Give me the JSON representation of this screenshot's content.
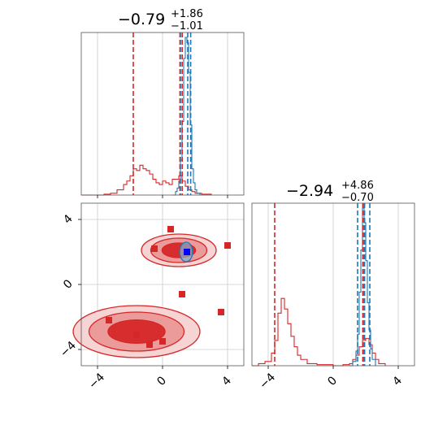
{
  "chart_data": {
    "type": "corner",
    "axis_ticks": [
      -4,
      0,
      4
    ],
    "axis_range": [
      -5,
      5
    ],
    "params": [
      {
        "title_value": "−0.79",
        "title_plus": "+1.86",
        "title_minus": "−1.01"
      },
      {
        "title_value": "−2.94",
        "title_plus": "+4.86",
        "title_minus": "−0.70"
      }
    ],
    "hist_x": {
      "red_quantiles": [
        -1.8,
        1.07,
        1.21
      ],
      "blue_quantiles": [
        1.1,
        1.55,
        1.73
      ],
      "red_hist": [
        [
          -5,
          0
        ],
        [
          -4,
          0
        ],
        [
          -3.6,
          0.005
        ],
        [
          -3.2,
          0.01
        ],
        [
          -2.8,
          0.03
        ],
        [
          -2.4,
          0.06
        ],
        [
          -2.2,
          0.08
        ],
        [
          -2.0,
          0.11
        ],
        [
          -1.8,
          0.15
        ],
        [
          -1.6,
          0.14
        ],
        [
          -1.4,
          0.17
        ],
        [
          -1.2,
          0.15
        ],
        [
          -1.0,
          0.14
        ],
        [
          -0.8,
          0.12
        ],
        [
          -0.6,
          0.09
        ],
        [
          -0.4,
          0.07
        ],
        [
          -0.2,
          0.06
        ],
        [
          0.0,
          0.08
        ],
        [
          0.2,
          0.07
        ],
        [
          0.4,
          0.06
        ],
        [
          0.6,
          0.09
        ],
        [
          0.8,
          0.09
        ],
        [
          1.0,
          0.11
        ],
        [
          1.2,
          0.08
        ],
        [
          1.4,
          0.05
        ],
        [
          1.6,
          0.03
        ],
        [
          1.8,
          0.02
        ],
        [
          2.0,
          0.01
        ],
        [
          2.4,
          0.005
        ],
        [
          3.0,
          0
        ]
      ],
      "blue_hist": [
        [
          0.6,
          0
        ],
        [
          0.8,
          0.02
        ],
        [
          0.9,
          0.04
        ],
        [
          1.0,
          0.08
        ],
        [
          1.1,
          0.2
        ],
        [
          1.2,
          0.42
        ],
        [
          1.3,
          0.78
        ],
        [
          1.4,
          0.9
        ],
        [
          1.5,
          0.87
        ],
        [
          1.6,
          0.7
        ],
        [
          1.7,
          0.4
        ],
        [
          1.8,
          0.15
        ],
        [
          1.9,
          0.07
        ],
        [
          2.0,
          0.03
        ],
        [
          2.1,
          0.01
        ],
        [
          2.3,
          0
        ]
      ]
    },
    "hist_y": {
      "red_quantiles": [
        -3.6,
        1.82,
        1.9
      ],
      "blue_quantiles": [
        1.5,
        1.93,
        2.25
      ],
      "red_hist": [
        [
          -5,
          0
        ],
        [
          -4.6,
          0.01
        ],
        [
          -4.2,
          0.02
        ],
        [
          -3.8,
          0.06
        ],
        [
          -3.6,
          0.12
        ],
        [
          -3.4,
          0.25
        ],
        [
          -3.2,
          0.32
        ],
        [
          -3.0,
          0.27
        ],
        [
          -2.8,
          0.2
        ],
        [
          -2.6,
          0.14
        ],
        [
          -2.4,
          0.09
        ],
        [
          -2.2,
          0.05
        ],
        [
          -2.0,
          0.03
        ],
        [
          -1.6,
          0.01
        ],
        [
          -1.0,
          0.005
        ],
        [
          0,
          0
        ],
        [
          0.6,
          0.005
        ],
        [
          1.0,
          0.01
        ],
        [
          1.2,
          0.03
        ],
        [
          1.4,
          0.05
        ],
        [
          1.6,
          0.09
        ],
        [
          1.8,
          0.12
        ],
        [
          2.0,
          0.13
        ],
        [
          2.2,
          0.1
        ],
        [
          2.4,
          0.06
        ],
        [
          2.6,
          0.03
        ],
        [
          2.8,
          0.01
        ],
        [
          3.2,
          0
        ]
      ],
      "blue_hist": [
        [
          1.0,
          0
        ],
        [
          1.2,
          0.02
        ],
        [
          1.4,
          0.07
        ],
        [
          1.5,
          0.15
        ],
        [
          1.6,
          0.35
        ],
        [
          1.7,
          0.55
        ],
        [
          1.8,
          0.75
        ],
        [
          1.9,
          0.68
        ],
        [
          2.0,
          0.5
        ],
        [
          2.1,
          0.3
        ],
        [
          2.2,
          0.17
        ],
        [
          2.3,
          0.08
        ],
        [
          2.4,
          0.03
        ],
        [
          2.6,
          0
        ]
      ]
    },
    "scatter_2d": {
      "red_points": [
        [
          0.5,
          3.4
        ],
        [
          -0.5,
          2.2
        ],
        [
          4.0,
          2.4
        ],
        [
          1.2,
          -0.6
        ],
        [
          3.6,
          -1.7
        ],
        [
          -3.3,
          -2.2
        ],
        [
          -1.6,
          -3.1
        ],
        [
          -0.8,
          -3.7
        ],
        [
          0.0,
          -3.5
        ]
      ],
      "blue_points": [
        [
          1.5,
          2.0
        ]
      ],
      "upper_blob": {
        "cx": 1.0,
        "cy": 2.1,
        "rx": 2.3,
        "ry": 1.0
      },
      "lower_blob": {
        "cx": -1.6,
        "cy": -2.9,
        "rx": 3.9,
        "ry": 1.6
      },
      "blue_blob": {
        "cx": 1.45,
        "cy": 2.0,
        "rx": 0.4,
        "ry": 0.6
      }
    },
    "colors": {
      "red": "#d62728",
      "blue": "#1f77b4"
    },
    "grid": true
  }
}
